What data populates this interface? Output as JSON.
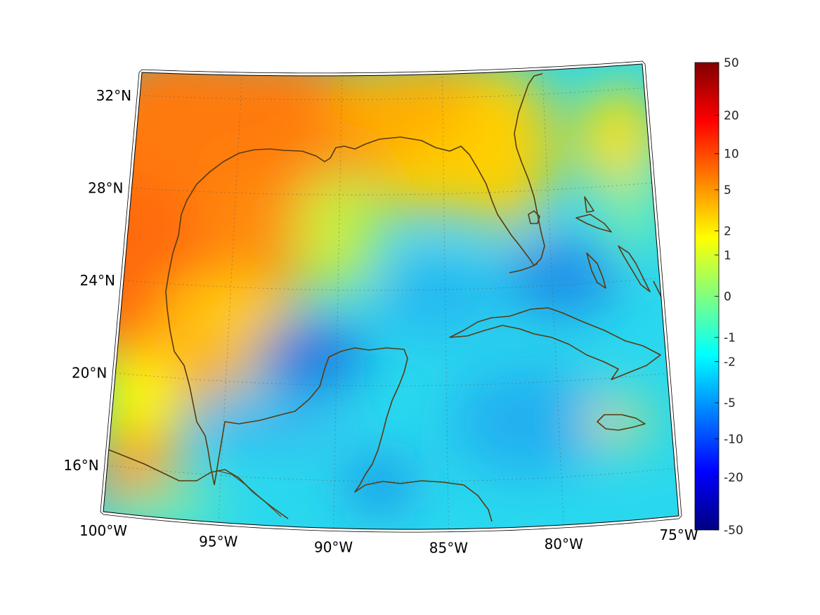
{
  "map": {
    "projection": "conic",
    "lon_range": [
      -100,
      -75
    ],
    "lat_range": [
      14,
      33
    ],
    "lon_labels": [
      "100°W",
      "95°W",
      "90°W",
      "85°W",
      "80°W",
      "75°W"
    ],
    "lat_labels": [
      "32°N",
      "28°N",
      "24°N",
      "20°N",
      "16°N"
    ],
    "coastline_color": "#5a3a10",
    "grid": "dotted"
  },
  "colorbar": {
    "colormap": "jet",
    "scale": "symmetric-log",
    "tick_labels": [
      "50",
      "20",
      "10",
      "5",
      "2",
      "1",
      "0",
      "-1",
      "-2",
      "-5",
      "-10",
      "-20",
      "-50"
    ],
    "colors": [
      "#800000",
      "#ff0000",
      "#ff8000",
      "#ffff00",
      "#80ff80",
      "#00ffff",
      "#0080ff",
      "#0000ff",
      "#000080"
    ]
  }
}
